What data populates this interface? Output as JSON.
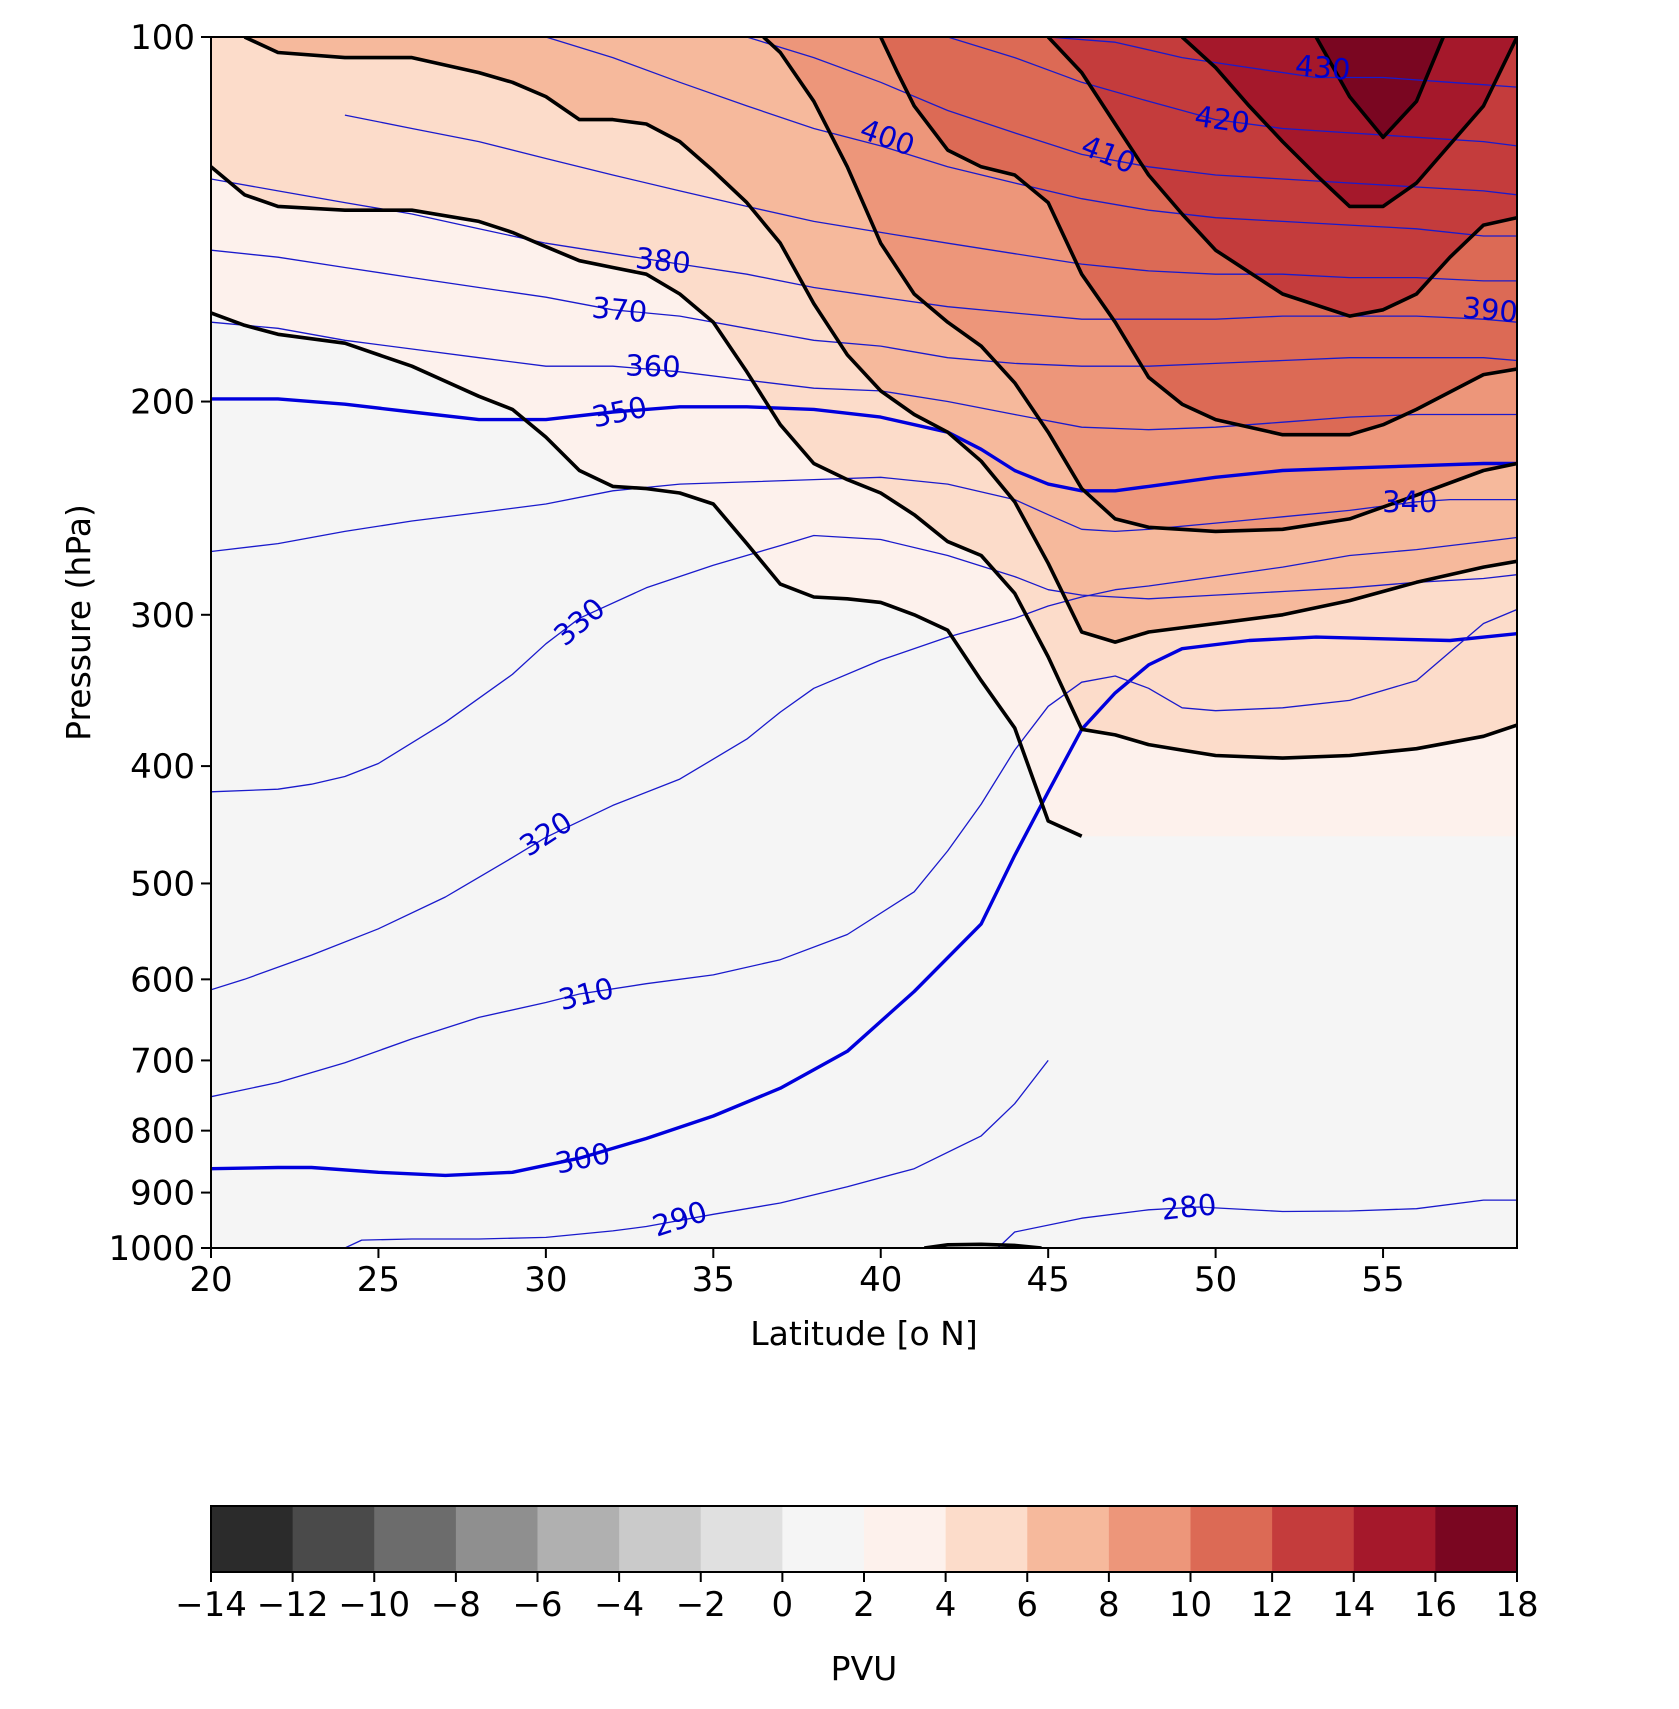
{
  "chart_data": {
    "type": "heatmap",
    "title": "",
    "xlabel": "Latitude [o N]",
    "ylabel": "Pressure (hPa)",
    "xlim": [
      20,
      59
    ],
    "ylim": [
      1000,
      100
    ],
    "y_scale": "log",
    "x_ticks": [
      20,
      25,
      30,
      35,
      40,
      45,
      50,
      55
    ],
    "x_tick_labels": [
      "20",
      "25",
      "30",
      "35",
      "40",
      "45",
      "50",
      "55"
    ],
    "y_ticks": [
      100,
      200,
      300,
      400,
      500,
      600,
      700,
      800,
      900,
      1000
    ],
    "y_tick_labels": [
      "100",
      "200",
      "300",
      "400",
      "500",
      "600",
      "700",
      "800",
      "900",
      "1000"
    ],
    "grid": false,
    "colorbar": {
      "label": "PVU",
      "orientation": "horizontal",
      "placement": "bottom",
      "levels": [
        -14,
        -12,
        -10,
        -8,
        -6,
        -4,
        -2,
        0,
        2,
        4,
        6,
        8,
        10,
        12,
        14,
        16,
        18
      ],
      "tick_labels": [
        "−14",
        "−12",
        "−10",
        "−8",
        "−6",
        "−4",
        "−2",
        "0",
        "2",
        "4",
        "6",
        "8",
        "10",
        "12",
        "14",
        "16",
        "18"
      ],
      "colors": [
        "#2b2b2b",
        "#4a4a4a",
        "#6c6c6c",
        "#8f8f8f",
        "#b0b0b0",
        "#cacaca",
        "#e0e0e0",
        "#f5f5f5",
        "#fdf1ec",
        "#fcdcca",
        "#f6b99c",
        "#ed967a",
        "#dc6a55",
        "#c43c3c",
        "#a5182b",
        "#7a0621"
      ]
    },
    "pv_contour_levels": [
      2,
      4,
      6,
      8,
      10,
      12,
      14,
      16
    ],
    "pv_contours": [
      {
        "level": 2,
        "lat": [
          20,
          21,
          22,
          24,
          26,
          28,
          29,
          30,
          31,
          32,
          33,
          34,
          35,
          36,
          37,
          38,
          39,
          40,
          41,
          42,
          43,
          44,
          45,
          46
        ],
        "p": [
          169,
          173,
          176,
          179,
          187,
          198,
          203,
          214,
          228,
          235,
          236,
          238,
          243,
          262,
          283,
          290,
          291,
          293,
          300,
          309,
          340,
          372,
          444,
          457
        ]
      },
      {
        "level": 4,
        "lat": [
          20,
          21,
          22,
          24,
          26,
          28,
          29,
          30,
          31,
          32,
          33,
          34,
          35,
          36,
          37,
          38,
          39,
          40,
          41,
          42,
          43,
          44,
          45,
          46,
          47,
          48,
          49,
          50,
          52,
          54,
          56,
          58,
          59
        ],
        "p": [
          128,
          135,
          138,
          139,
          139,
          142,
          145,
          149,
          153,
          155,
          157,
          163,
          172,
          189,
          209,
          225,
          232,
          238,
          248,
          261,
          268,
          288,
          325,
          373,
          377,
          384,
          388,
          392,
          394,
          392,
          387,
          378,
          370
        ]
      },
      {
        "level": 6,
        "lat": [
          21,
          22,
          24,
          26,
          28,
          29,
          30,
          31,
          32,
          33,
          34,
          35,
          36,
          37,
          38,
          39,
          40,
          41,
          42,
          43,
          44,
          45,
          46,
          47,
          48,
          50,
          52,
          54,
          56,
          58,
          59
        ],
        "p": [
          100,
          103,
          104,
          104,
          107,
          109,
          112,
          117,
          117,
          118,
          122,
          129,
          137,
          148,
          166,
          183,
          196,
          205,
          212,
          224,
          242,
          272,
          310,
          316,
          310,
          305,
          300,
          292,
          282,
          274,
          271
        ]
      },
      {
        "level": 8,
        "lat": [
          36.5,
          37,
          38,
          39,
          40,
          41,
          42,
          43,
          44,
          45,
          46,
          47,
          48,
          50,
          52,
          54,
          56,
          58,
          59
        ],
        "p": [
          100,
          103,
          113,
          128,
          148,
          163,
          172,
          180,
          193,
          212,
          236,
          250,
          254,
          256,
          255,
          250,
          239,
          228,
          225
        ]
      },
      {
        "level": 10,
        "lat": [
          40,
          40.5,
          41,
          42,
          43,
          44,
          45,
          46,
          47,
          48,
          49,
          50,
          52,
          54,
          55,
          56,
          58,
          59
        ],
        "p": [
          100,
          107,
          114,
          124,
          128,
          130,
          137,
          157,
          172,
          191,
          201,
          207,
          213,
          213,
          209,
          203,
          190,
          188
        ]
      },
      {
        "level": 12,
        "lat": [
          45,
          46,
          47,
          48,
          49,
          50,
          52,
          54,
          55,
          56,
          57,
          58,
          59
        ],
        "p": [
          100,
          107,
          118,
          130,
          140,
          150,
          163,
          170,
          168,
          163,
          152,
          143,
          141
        ]
      },
      {
        "level": 14,
        "lat": [
          49,
          50,
          51,
          52,
          53,
          54,
          55,
          56,
          58,
          59
        ],
        "p": [
          100,
          106,
          114,
          122,
          130,
          138,
          138,
          132,
          114,
          100
        ]
      },
      {
        "level": 16,
        "lat": [
          53,
          54,
          55,
          56,
          56.8
        ],
        "p": [
          100,
          112,
          121,
          113,
          100
        ]
      }
    ],
    "theta_contours": [
      {
        "level": 280,
        "lat": [
          43.5,
          44,
          46,
          48,
          49.5,
          52,
          54,
          56,
          58,
          59
        ],
        "p": [
          1000,
          970,
          945,
          930,
          925,
          933,
          932,
          928,
          913,
          913
        ]
      },
      {
        "level": 290,
        "lat": [
          24,
          24.5,
          26,
          28,
          30,
          32,
          33,
          35,
          37,
          39,
          41,
          43,
          44,
          45
        ],
        "p": [
          1000,
          985,
          983,
          983,
          980,
          968,
          960,
          938,
          918,
          890,
          860,
          808,
          760,
          700
        ]
      },
      {
        "level": 300,
        "lat": [
          20,
          22,
          23,
          25,
          27,
          29,
          31,
          33,
          35,
          37,
          39,
          41,
          43,
          44,
          45,
          46,
          47,
          48,
          49,
          51,
          53,
          55,
          57,
          59
        ],
        "p": [
          860,
          858,
          858,
          866,
          871,
          866,
          843,
          812,
          778,
          738,
          688,
          614,
          540,
          474,
          420,
          373,
          348,
          330,
          320,
          315,
          313,
          314,
          315,
          311
        ]
      },
      {
        "level": 310,
        "lat": [
          20,
          22,
          24,
          26,
          28,
          30,
          31,
          33,
          35,
          37,
          39,
          41,
          42,
          43,
          44,
          45,
          46,
          47,
          48,
          49,
          50,
          52,
          54,
          56,
          57,
          58,
          59
        ],
        "p": [
          750,
          730,
          703,
          672,
          645,
          627,
          617,
          605,
          595,
          578,
          551,
          508,
          470,
          430,
          388,
          357,
          341,
          337,
          345,
          358,
          360,
          358,
          353,
          340,
          322,
          305,
          297
        ]
      },
      {
        "level": 320,
        "lat": [
          20,
          21,
          23,
          25,
          27,
          29,
          30,
          32,
          34,
          36,
          37,
          38,
          40,
          42,
          44,
          45,
          46,
          47,
          48,
          50,
          52,
          54,
          56,
          58,
          59
        ],
        "p": [
          612,
          600,
          573,
          545,
          513,
          476,
          458,
          431,
          410,
          380,
          361,
          345,
          327,
          313,
          302,
          295,
          290,
          286,
          284,
          279,
          274,
          268,
          265,
          261,
          259
        ]
      },
      {
        "level": 330,
        "lat": [
          20,
          22,
          23,
          24,
          25,
          27,
          29,
          30,
          31,
          33,
          35,
          37,
          38,
          40,
          42,
          44,
          45,
          46,
          47,
          48,
          50,
          52,
          54,
          56,
          58,
          59
        ],
        "p": [
          420,
          418,
          414,
          408,
          398,
          368,
          336,
          317,
          302,
          285,
          273,
          263,
          258,
          260,
          268,
          279,
          286,
          289,
          290,
          291,
          289,
          287,
          285,
          282,
          280,
          278
        ]
      },
      {
        "level": 340,
        "lat": [
          20,
          22,
          24,
          26,
          28,
          30,
          32,
          34,
          36,
          38,
          40,
          42,
          44,
          45,
          46,
          47,
          48,
          50,
          52,
          54,
          56,
          57,
          58,
          59
        ],
        "p": [
          266,
          262,
          256,
          251,
          247,
          243,
          237,
          234,
          233,
          232,
          231,
          234,
          241,
          248,
          255,
          256,
          255,
          252,
          249,
          246,
          242,
          241,
          241,
          241
        ]
      },
      {
        "level": 350,
        "lat": [
          20,
          22,
          24,
          26,
          28,
          30,
          32,
          34,
          36,
          38,
          40,
          42,
          43,
          44,
          45,
          46,
          47,
          48,
          50,
          52,
          54,
          56,
          58,
          59
        ],
        "p": [
          199,
          199,
          201,
          204,
          207,
          207,
          204,
          202,
          202,
          203,
          206,
          212,
          219,
          228,
          234,
          237,
          237,
          235,
          231,
          228,
          227,
          226,
          225,
          225
        ]
      },
      {
        "level": 360,
        "lat": [
          20,
          22,
          24,
          26,
          28,
          30,
          32,
          34,
          36,
          38,
          40,
          42,
          44,
          46,
          48,
          50,
          52,
          54,
          56,
          58,
          59
        ],
        "p": [
          172,
          174,
          178,
          181,
          184,
          187,
          187,
          189,
          192,
          195,
          196,
          200,
          205,
          210,
          211,
          210,
          208,
          206,
          205,
          205,
          205
        ]
      },
      {
        "level": 370,
        "lat": [
          20,
          22,
          24,
          26,
          28,
          30,
          32,
          34,
          36,
          38,
          40,
          42,
          44,
          46,
          48,
          50,
          52,
          54,
          56,
          58,
          59
        ],
        "p": [
          150,
          152,
          155,
          158,
          161,
          164,
          168,
          170,
          174,
          178,
          180,
          184,
          186,
          187,
          187,
          186,
          185,
          184,
          184,
          184,
          185
        ]
      },
      {
        "level": 380,
        "lat": [
          20,
          22,
          24,
          26,
          28,
          30,
          32,
          34,
          36,
          38,
          40,
          42,
          44,
          46,
          48,
          50,
          52,
          54,
          56,
          58,
          59
        ],
        "p": [
          131,
          134,
          137,
          140,
          144,
          148,
          151,
          154,
          157,
          161,
          164,
          167,
          169,
          171,
          171,
          171,
          170,
          170,
          170,
          171,
          172
        ]
      },
      {
        "level": 390,
        "lat": [
          24,
          26,
          28,
          30,
          32,
          34,
          36,
          38,
          40,
          42,
          44,
          46,
          48,
          50,
          52,
          54,
          56,
          58,
          59
        ],
        "p": [
          116,
          119,
          122,
          126,
          130,
          134,
          138,
          142,
          145,
          148,
          151,
          154,
          156,
          157,
          157,
          158,
          158,
          159,
          159
        ]
      },
      {
        "level": 400,
        "lat": [
          30,
          32,
          34,
          36,
          38,
          40,
          42,
          44,
          46,
          48,
          50,
          52,
          54,
          56,
          58,
          59
        ],
        "p": [
          100,
          104,
          109,
          114,
          119,
          123,
          128,
          132,
          136,
          139,
          141,
          142,
          143,
          144,
          146,
          146
        ]
      },
      {
        "level": 410,
        "lat": [
          36,
          38,
          40,
          42,
          44,
          46,
          48,
          50,
          52,
          54,
          56,
          58,
          59
        ],
        "p": [
          100,
          104,
          109,
          115,
          120,
          125,
          128,
          130,
          131,
          132,
          133,
          134,
          135
        ]
      },
      {
        "level": 420,
        "lat": [
          42,
          44,
          46,
          48,
          50,
          52,
          54,
          56,
          58,
          59
        ],
        "p": [
          100,
          104,
          109,
          113,
          117,
          119,
          120,
          121,
          122,
          123
        ]
      },
      {
        "level": 430,
        "lat": [
          45,
          47,
          49,
          51,
          53,
          55,
          57,
          59
        ],
        "p": [
          100,
          101,
          104,
          106,
          108,
          108,
          109,
          110
        ]
      }
    ],
    "theta_contour_labels": [
      {
        "text": "430",
        "lat": 53.2,
        "p": 106,
        "angle": 5
      },
      {
        "text": "420",
        "lat": 50.2,
        "p": 117,
        "angle": 8
      },
      {
        "text": "410",
        "lat": 46.8,
        "p": 125,
        "angle": 22
      },
      {
        "text": "400",
        "lat": 40.2,
        "p": 121,
        "angle": 20
      },
      {
        "text": "380",
        "lat": 33.5,
        "p": 153,
        "angle": 6
      },
      {
        "text": "370",
        "lat": 32.2,
        "p": 168,
        "angle": 5
      },
      {
        "text": "390",
        "lat": 58.2,
        "p": 168,
        "angle": 5
      },
      {
        "text": "360",
        "lat": 33.2,
        "p": 187,
        "angle": 2
      },
      {
        "text": "350",
        "lat": 32.2,
        "p": 204,
        "angle": -12
      },
      {
        "text": "340",
        "lat": 55.8,
        "p": 242,
        "angle": 0
      },
      {
        "text": "330",
        "lat": 31.0,
        "p": 304,
        "angle": -40
      },
      {
        "text": "320",
        "lat": 30.0,
        "p": 455,
        "angle": -33
      },
      {
        "text": "310",
        "lat": 31.2,
        "p": 617,
        "angle": -14
      },
      {
        "text": "300",
        "lat": 31.1,
        "p": 843,
        "angle": -12
      },
      {
        "text": "290",
        "lat": 34.0,
        "p": 946,
        "angle": -18
      },
      {
        "text": "280",
        "lat": 49.2,
        "p": 925,
        "angle": -6
      }
    ],
    "theta_bold_levels": [
      300,
      350
    ]
  }
}
